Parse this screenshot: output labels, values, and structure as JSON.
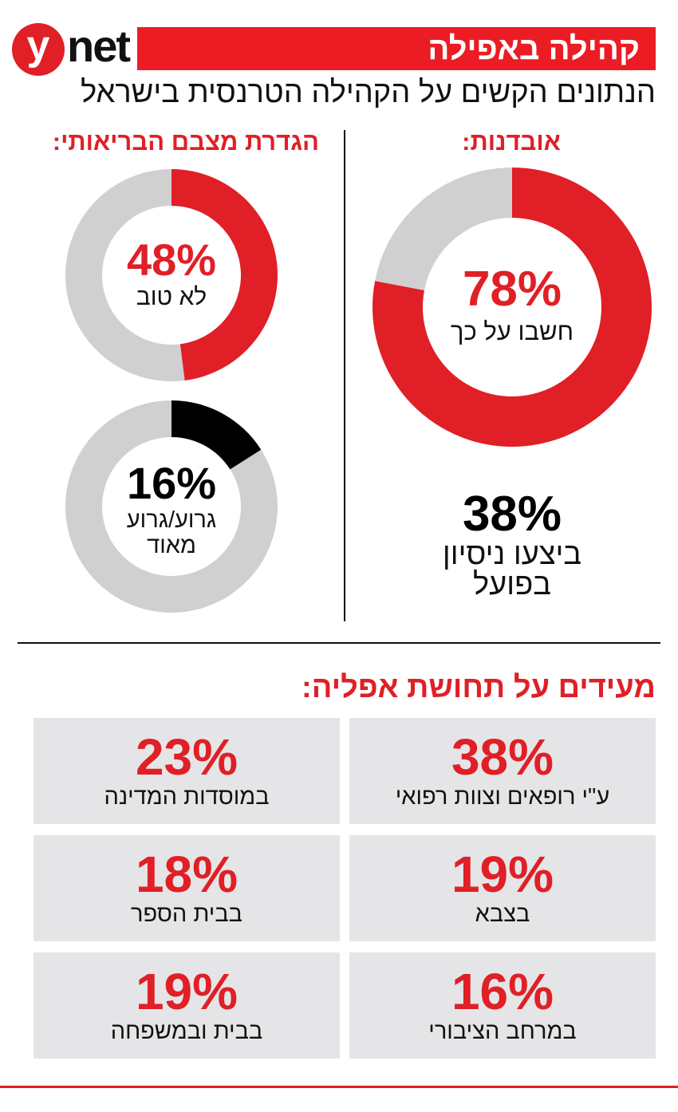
{
  "brand": {
    "logo_y": "y",
    "logo_net": "net"
  },
  "header": {
    "title": "קהילה באפילה",
    "subtitle": "הנתונים הקשים על הקהילה הטרנסית בישראל"
  },
  "colors": {
    "red": "#e01f26",
    "gray": "#d0d0d0",
    "black": "#000000",
    "cell_bg": "#e5e5e7"
  },
  "suicide": {
    "heading": "אובדנות:",
    "attempt_pct": "38%",
    "attempt_label_1": "ביצעו ניסיון",
    "attempt_label_2": "בפועל"
  },
  "health": {
    "heading": "הגדרת מצבם הבריאותי:"
  },
  "chart_data": [
    {
      "type": "pie",
      "subtype": "donut",
      "title": "אובדנות",
      "value": 78,
      "value_label": "78%",
      "label": "חשבו על כך",
      "fill_color": "#e01f26",
      "rest_color": "#d0d0d0"
    },
    {
      "type": "pie",
      "subtype": "donut",
      "title": "הגדרת מצבם הבריאותי",
      "value": 48,
      "value_label": "48%",
      "label": "לא טוב",
      "fill_color": "#e01f26",
      "rest_color": "#d0d0d0"
    },
    {
      "type": "pie",
      "subtype": "donut",
      "title": "הגדרת מצבם הבריאותי",
      "value": 16,
      "value_label": "16%",
      "label_1": "גרוע/גרוע",
      "label_2": "מאוד",
      "fill_color": "#000000",
      "rest_color": "#d0d0d0"
    }
  ],
  "discrimination": {
    "heading": "מעידים על תחושת אפליה:",
    "items": [
      {
        "pct": "38%",
        "label": "ע\"י רופאים וצוות רפואי"
      },
      {
        "pct": "23%",
        "label": "במוסדות המדינה"
      },
      {
        "pct": "19%",
        "label": "בצבא"
      },
      {
        "pct": "18%",
        "label": "בבית הספר"
      },
      {
        "pct": "16%",
        "label": "במרחב הציבורי"
      },
      {
        "pct": "19%",
        "label": "בבית ובמשפחה"
      }
    ]
  }
}
